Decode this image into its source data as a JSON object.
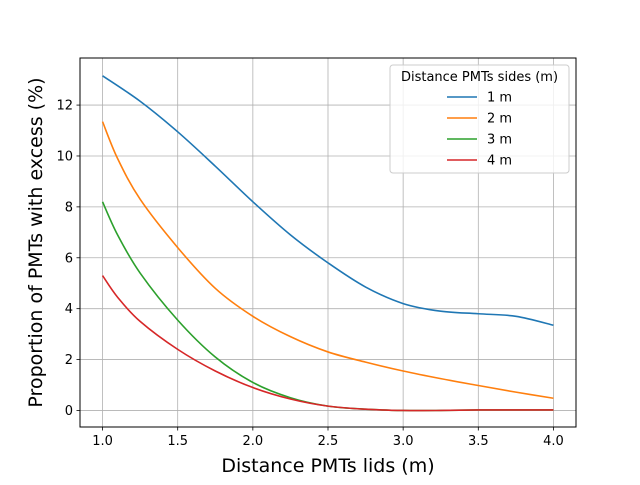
{
  "chart_data": {
    "type": "line",
    "xlabel": "Distance PMTs lids (m)",
    "ylabel": "Proportion of PMTs with excess (%)",
    "xlim": [
      0.85,
      4.15
    ],
    "ylim": [
      -0.65,
      13.85
    ],
    "xticks": [
      1.0,
      1.5,
      2.0,
      2.5,
      3.0,
      3.5,
      4.0
    ],
    "xtick_labels": [
      "1.0",
      "1.5",
      "2.0",
      "2.5",
      "3.0",
      "3.5",
      "4.0"
    ],
    "yticks": [
      0,
      2,
      4,
      6,
      8,
      10,
      12
    ],
    "ytick_labels": [
      "0",
      "2",
      "4",
      "6",
      "8",
      "10",
      "12"
    ],
    "grid": true,
    "legend": {
      "title": "Distance PMTs sides (m)",
      "position": "top-right"
    },
    "series": [
      {
        "name": "1 m",
        "color": "#1f77b4",
        "x": [
          1.0,
          1.25,
          1.5,
          1.75,
          2.0,
          2.25,
          2.5,
          2.75,
          3.0,
          3.25,
          3.5,
          3.75,
          4.0
        ],
        "y": [
          13.15,
          12.15,
          10.95,
          9.6,
          8.2,
          6.9,
          5.8,
          4.85,
          4.2,
          3.9,
          3.8,
          3.7,
          3.35
        ]
      },
      {
        "name": "2 m",
        "color": "#ff7f0e",
        "x": [
          1.0,
          1.1,
          1.25,
          1.5,
          1.75,
          2.0,
          2.25,
          2.5,
          2.75,
          3.0,
          3.25,
          3.5,
          3.75,
          4.0
        ],
        "y": [
          11.35,
          9.9,
          8.3,
          6.4,
          4.8,
          3.7,
          2.9,
          2.3,
          1.9,
          1.55,
          1.25,
          0.98,
          0.72,
          0.48
        ]
      },
      {
        "name": "3 m",
        "color": "#2ca02c",
        "x": [
          1.0,
          1.1,
          1.25,
          1.5,
          1.75,
          2.0,
          2.25,
          2.5,
          2.75,
          3.0,
          3.25,
          3.5,
          3.75,
          4.0
        ],
        "y": [
          8.2,
          6.9,
          5.4,
          3.55,
          2.1,
          1.1,
          0.5,
          0.17,
          0.05,
          0.0,
          0.0,
          0.02,
          0.02,
          0.02
        ]
      },
      {
        "name": "4 m",
        "color": "#d62728",
        "x": [
          1.0,
          1.1,
          1.25,
          1.5,
          1.75,
          2.0,
          2.25,
          2.5,
          2.75,
          3.0,
          3.25,
          3.5,
          3.75,
          4.0
        ],
        "y": [
          5.3,
          4.45,
          3.5,
          2.4,
          1.55,
          0.9,
          0.45,
          0.17,
          0.05,
          0.0,
          0.0,
          0.02,
          0.02,
          0.02
        ]
      }
    ]
  }
}
